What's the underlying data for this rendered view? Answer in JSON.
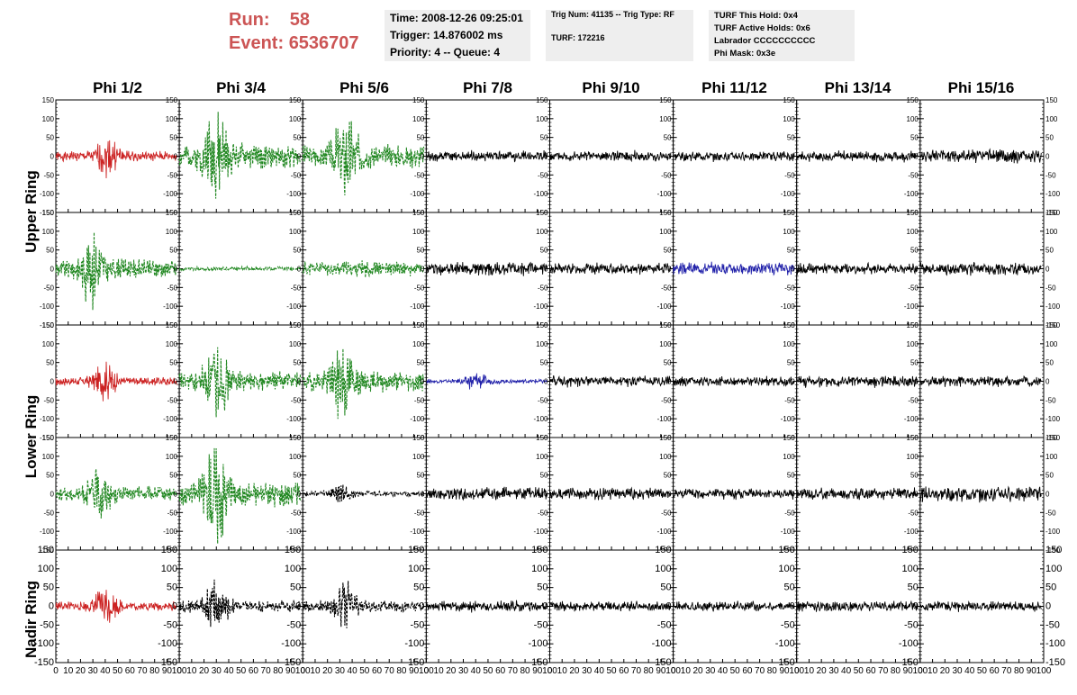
{
  "run_info": {
    "run_label": "Run:",
    "run_value": "58",
    "event_label": "Event:",
    "event_value": "6536707"
  },
  "info_box_1": {
    "time": "Time: 2008-12-26 09:25:01",
    "trigger": "Trigger: 14.876002 ms",
    "priority": "Priority: 4 -- Queue: 4"
  },
  "info_box_2": {
    "trig": "Trig Num: 41135 -- Trig Type: RF",
    "turf": "TURF: 172216"
  },
  "info_box_3": {
    "this_hold": "TURF This Hold: 0x4",
    "active_holds": "TURF Active Holds: 0x6",
    "labrador": "Labrador CCCCCCCCCC",
    "phi_mask": "Phi Mask: 0x3e"
  },
  "columns": [
    "Phi 1/2",
    "Phi 3/4",
    "Phi 5/6",
    "Phi 7/8",
    "Phi 9/10",
    "Phi 11/12",
    "Phi 13/14",
    "Phi 15/16"
  ],
  "rows": [
    "Upper Ring",
    "Lower Ring",
    "Nadir Ring"
  ],
  "colors": {
    "red": "#cc2222",
    "green": "#228822",
    "blue": "#2222aa",
    "black": "#000000",
    "run": "#cc5555",
    "box_bg": "#eeeeee"
  },
  "chart_data": {
    "type": "line",
    "xlim": [
      0,
      100
    ],
    "ylim": [
      -150,
      150
    ],
    "x_ticks": [
      0,
      10,
      20,
      30,
      40,
      50,
      60,
      70,
      80,
      90,
      100
    ],
    "y_ticks": [
      -150,
      -100,
      -50,
      0,
      50,
      100,
      150
    ],
    "panel_rows": 5,
    "panel_cols": 8,
    "waveform_x_range": [
      0,
      98
    ],
    "panels": [
      [
        {
          "color": "red",
          "style": "solid",
          "amp": 48,
          "burst": 42,
          "seed": 1
        },
        {
          "color": "green",
          "style": "dashed",
          "amp": 120,
          "burst": 30,
          "seed": 2
        },
        {
          "color": "green",
          "style": "dashed",
          "amp": 110,
          "burst": 35,
          "seed": 3
        },
        {
          "color": "black",
          "style": "solid",
          "amp": 22,
          "burst": 0,
          "seed": 4
        },
        {
          "color": "black",
          "style": "solid",
          "amp": 22,
          "burst": 0,
          "seed": 5
        },
        {
          "color": "black",
          "style": "solid",
          "amp": 20,
          "burst": 0,
          "seed": 6
        },
        {
          "color": "black",
          "style": "solid",
          "amp": 22,
          "burst": 0,
          "seed": 7
        },
        {
          "color": "black",
          "style": "solid",
          "amp": 28,
          "burst": 0,
          "seed": 8
        }
      ],
      [
        {
          "color": "green",
          "style": "dashed",
          "amp": 95,
          "burst": 30,
          "seed": 9
        },
        {
          "color": "green",
          "style": "dashed",
          "amp": 8,
          "burst": 0,
          "seed": 10
        },
        {
          "color": "green",
          "style": "dashed",
          "amp": 30,
          "burst": 0,
          "seed": 11
        },
        {
          "color": "black",
          "style": "solid",
          "amp": 28,
          "burst": 0,
          "seed": 12
        },
        {
          "color": "black",
          "style": "solid",
          "amp": 22,
          "burst": 0,
          "seed": 13
        },
        {
          "color": "blue",
          "style": "solid",
          "amp": 25,
          "burst": 0,
          "seed": 14
        },
        {
          "color": "black",
          "style": "solid",
          "amp": 22,
          "burst": 0,
          "seed": 15
        },
        {
          "color": "black",
          "style": "solid",
          "amp": 26,
          "burst": 0,
          "seed": 16
        }
      ],
      [
        {
          "color": "red",
          "style": "solid",
          "amp": 45,
          "burst": 40,
          "seed": 17
        },
        {
          "color": "green",
          "style": "dashed",
          "amp": 95,
          "burst": 30,
          "seed": 18
        },
        {
          "color": "green",
          "style": "dashed",
          "amp": 100,
          "burst": 32,
          "seed": 19
        },
        {
          "color": "blue",
          "style": "solid",
          "amp": 22,
          "burst": 40,
          "seed": 20
        },
        {
          "color": "black",
          "style": "solid",
          "amp": 22,
          "burst": 0,
          "seed": 21
        },
        {
          "color": "black",
          "style": "solid",
          "amp": 20,
          "burst": 0,
          "seed": 22
        },
        {
          "color": "black",
          "style": "solid",
          "amp": 26,
          "burst": 0,
          "seed": 23
        },
        {
          "color": "black",
          "style": "solid",
          "amp": 22,
          "burst": 0,
          "seed": 24
        }
      ],
      [
        {
          "color": "green",
          "style": "dashed",
          "amp": 70,
          "burst": 35,
          "seed": 25
        },
        {
          "color": "green",
          "style": "dashed",
          "amp": 125,
          "burst": 30,
          "seed": 26
        },
        {
          "color": "black",
          "style": "dashed",
          "amp": 25,
          "burst": 30,
          "seed": 27
        },
        {
          "color": "black",
          "style": "solid",
          "amp": 26,
          "burst": 0,
          "seed": 28
        },
        {
          "color": "black",
          "style": "solid",
          "amp": 24,
          "burst": 0,
          "seed": 29
        },
        {
          "color": "black",
          "style": "solid",
          "amp": 22,
          "burst": 0,
          "seed": 30
        },
        {
          "color": "black",
          "style": "solid",
          "amp": 24,
          "burst": 0,
          "seed": 31
        },
        {
          "color": "black",
          "style": "solid",
          "amp": 32,
          "burst": 0,
          "seed": 32
        }
      ],
      [
        {
          "color": "red",
          "style": "solid",
          "amp": 45,
          "burst": 40,
          "seed": 33
        },
        {
          "color": "black",
          "style": "dashed",
          "amp": 60,
          "burst": 30,
          "seed": 34
        },
        {
          "color": "black",
          "style": "dashed",
          "amp": 55,
          "burst": 35,
          "seed": 35
        },
        {
          "color": "black",
          "style": "solid",
          "amp": 22,
          "burst": 0,
          "seed": 36
        },
        {
          "color": "black",
          "style": "solid",
          "amp": 20,
          "burst": 0,
          "seed": 37
        },
        {
          "color": "black",
          "style": "solid",
          "amp": 20,
          "burst": 0,
          "seed": 38
        },
        {
          "color": "black",
          "style": "solid",
          "amp": 22,
          "burst": 0,
          "seed": 39
        },
        {
          "color": "black",
          "style": "solid",
          "amp": 20,
          "burst": 0,
          "seed": 40
        }
      ]
    ]
  }
}
